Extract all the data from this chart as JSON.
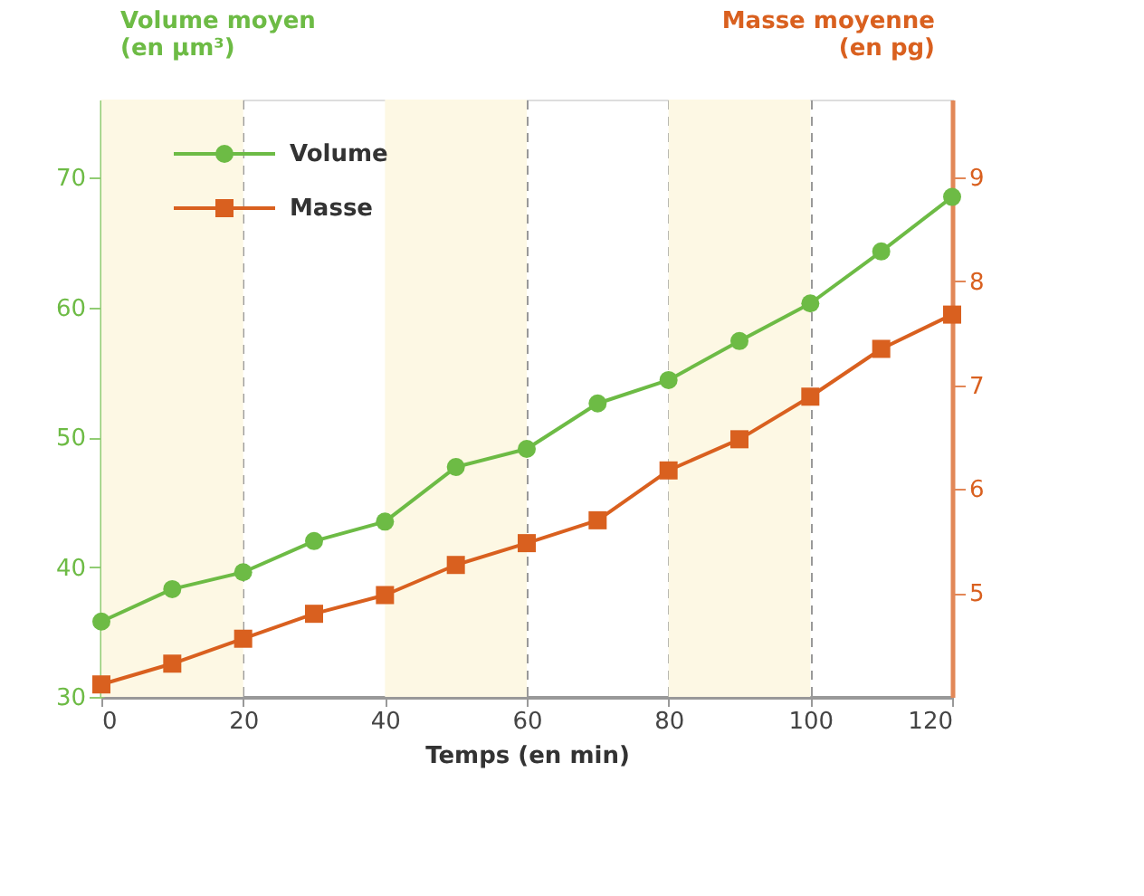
{
  "chart_data": {
    "type": "line",
    "xlabel": "Temps (en min)",
    "ylabel": "Volume moyen\n(en µm³)",
    "y2label": "Masse moyenne\n(en pg)",
    "x": [
      0,
      10,
      20,
      30,
      40,
      50,
      60,
      70,
      80,
      90,
      100,
      110,
      120
    ],
    "series": [
      {
        "name": "Volume",
        "color": "#6dbb45",
        "marker": "circle",
        "values": [
          35.8,
          38.3,
          39.6,
          42.0,
          43.5,
          47.7,
          49.1,
          52.6,
          54.4,
          57.4,
          60.3,
          64.3,
          68.5
        ]
      },
      {
        "name": "Masse",
        "color": "#d9601f",
        "marker": "square",
        "axis": "y2",
        "values": [
          4.12,
          4.32,
          4.56,
          4.8,
          4.98,
          5.27,
          5.48,
          5.7,
          6.18,
          6.48,
          6.89,
          7.35,
          7.68
        ]
      }
    ],
    "xlim": [
      0,
      120
    ],
    "xticks": [
      0,
      20,
      40,
      60,
      80,
      100,
      120
    ],
    "ylim": [
      30,
      76
    ],
    "yticks": [
      30,
      40,
      50,
      60,
      70
    ],
    "y2lim": [
      4,
      9.75
    ],
    "y2ticks": [
      5,
      6,
      7,
      8,
      9
    ],
    "bands": [
      {
        "axis": "x",
        "from": 0,
        "to": 20,
        "color": "#fdf8e4"
      },
      {
        "axis": "x",
        "from": 40,
        "to": 60,
        "color": "#fdf8e4"
      },
      {
        "axis": "x",
        "from": 80,
        "to": 100,
        "color": "#fdf8e4"
      }
    ],
    "grid": "x",
    "legend": "top left"
  }
}
